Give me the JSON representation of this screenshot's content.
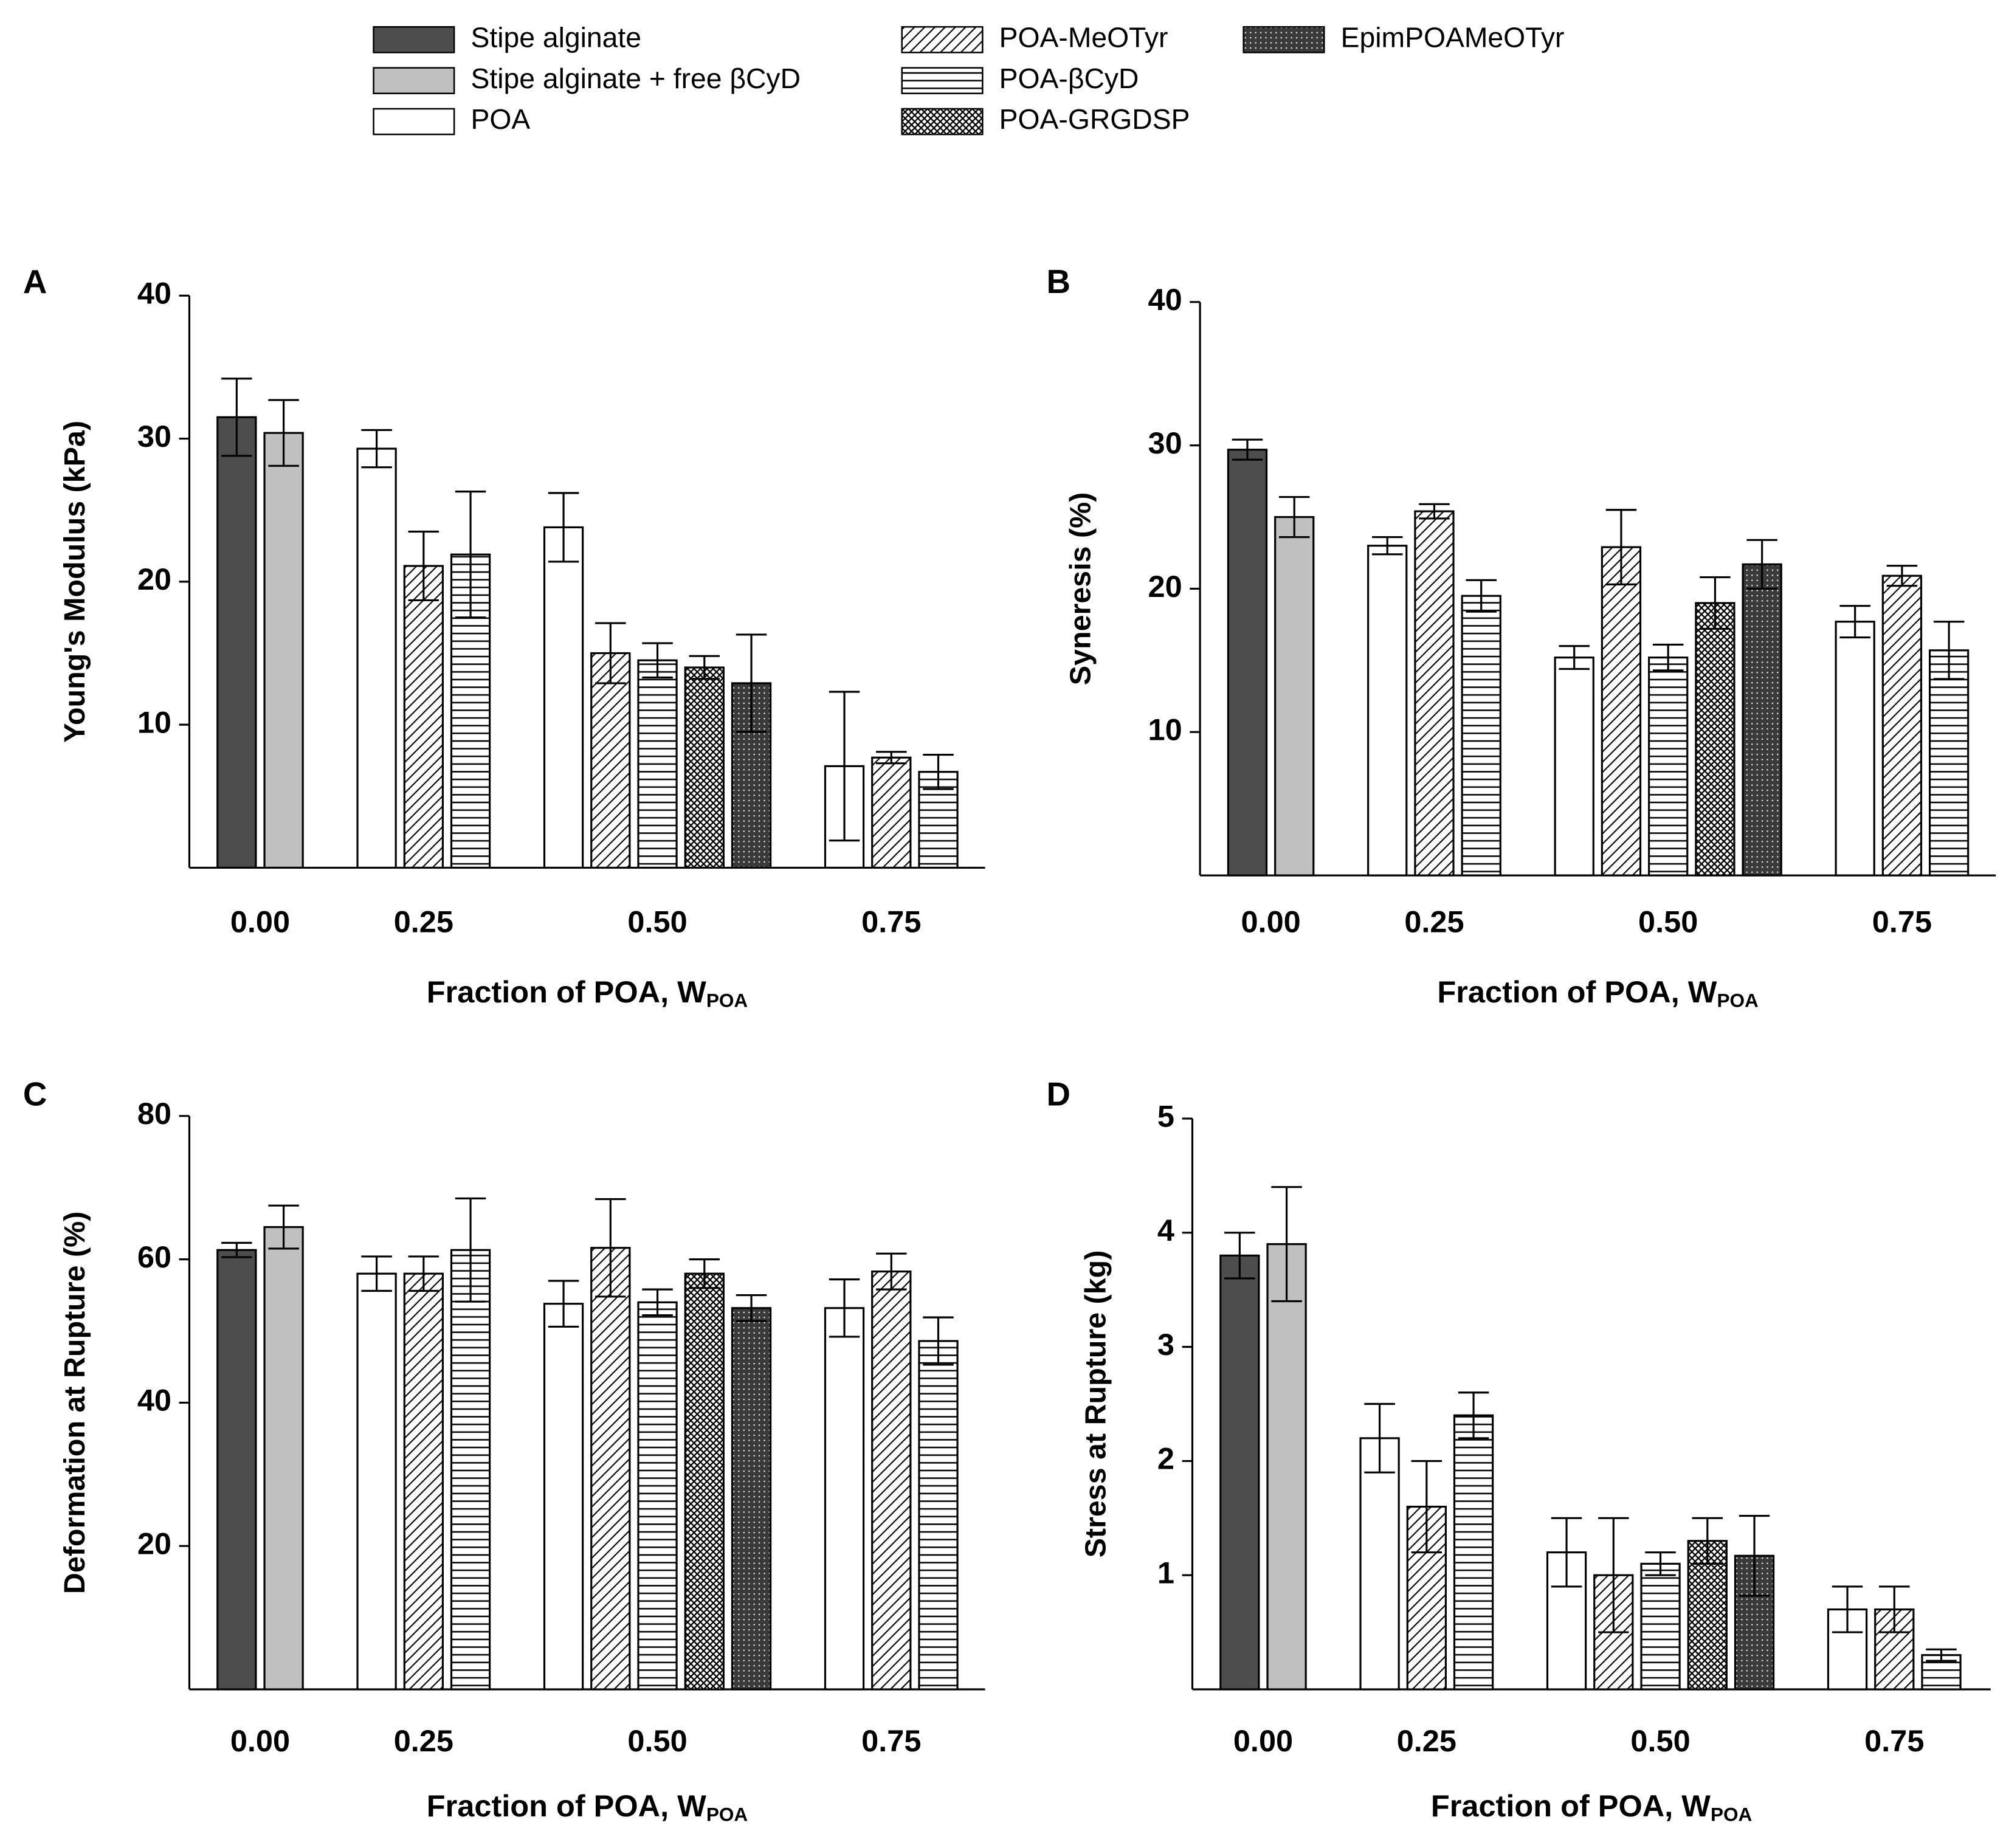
{
  "legend": {
    "series": [
      {
        "name": "Stipe alginate",
        "color": "#4d4d4d",
        "pattern": "solid"
      },
      {
        "name": "Stipe alginate + free βCyD",
        "color": "#c0c0c0",
        "pattern": "solid"
      },
      {
        "name": "POA",
        "color": "#ffffff",
        "pattern": "solid"
      },
      {
        "name": "POA-MeOTyr",
        "color": "#000000",
        "pattern": "diagonal"
      },
      {
        "name": "POA-βCyD",
        "color": "#000000",
        "pattern": "horizontal"
      },
      {
        "name": "POA-GRGDSP",
        "color": "#000000",
        "pattern": "crosshatch"
      },
      {
        "name": "EpimPOAMeOTyr",
        "color": "#3a3a3a",
        "pattern": "dots"
      }
    ]
  },
  "chart_data": [
    {
      "type": "bar",
      "panel": "A",
      "ylabel": "Young's Modulus (kPa)",
      "xlabel": "Fraction of POA, W",
      "xlabel_sub": "POA",
      "categories": [
        "0.00",
        "0.25",
        "0.50",
        "0.75"
      ],
      "ylim": [
        0,
        40
      ],
      "yticks": [
        10,
        20,
        30,
        40
      ],
      "series": [
        {
          "values": [
            31.5,
            null,
            null,
            null
          ],
          "errors": [
            2.7,
            null,
            null,
            null
          ]
        },
        {
          "values": [
            30.4,
            null,
            null,
            null
          ],
          "errors": [
            2.3,
            null,
            null,
            null
          ]
        },
        {
          "values": [
            null,
            29.3,
            23.8,
            7.1
          ],
          "errors": [
            null,
            1.3,
            2.4,
            5.2
          ]
        },
        {
          "values": [
            null,
            21.1,
            15.0,
            7.7
          ],
          "errors": [
            null,
            2.4,
            2.1,
            0.4
          ]
        },
        {
          "values": [
            null,
            21.9,
            14.5,
            6.7
          ],
          "errors": [
            null,
            4.4,
            1.2,
            1.2
          ]
        },
        {
          "values": [
            null,
            null,
            14.0,
            null
          ],
          "errors": [
            null,
            null,
            0.8,
            null
          ]
        },
        {
          "values": [
            null,
            null,
            12.9,
            null
          ],
          "errors": [
            null,
            null,
            3.4,
            null
          ]
        }
      ]
    },
    {
      "type": "bar",
      "panel": "B",
      "ylabel": "Syneresis (%)",
      "xlabel": "Fraction of POA, W",
      "xlabel_sub": "POA",
      "categories": [
        "0.00",
        "0.25",
        "0.50",
        "0.75"
      ],
      "ylim": [
        0,
        40
      ],
      "yticks": [
        10,
        20,
        30,
        40
      ],
      "series": [
        {
          "values": [
            29.7,
            null,
            null,
            null
          ],
          "errors": [
            0.7,
            null,
            null,
            null
          ]
        },
        {
          "values": [
            25.0,
            null,
            null,
            null
          ],
          "errors": [
            1.4,
            null,
            null,
            null
          ]
        },
        {
          "values": [
            null,
            23.0,
            15.2,
            17.7
          ],
          "errors": [
            null,
            0.6,
            0.8,
            1.1
          ]
        },
        {
          "values": [
            null,
            25.4,
            22.9,
            20.9
          ],
          "errors": [
            null,
            0.5,
            2.6,
            0.7
          ]
        },
        {
          "values": [
            null,
            19.5,
            15.2,
            15.7
          ],
          "errors": [
            null,
            1.1,
            0.9,
            2.0
          ]
        },
        {
          "values": [
            null,
            null,
            19.0,
            null
          ],
          "errors": [
            null,
            null,
            1.8,
            null
          ]
        },
        {
          "values": [
            null,
            null,
            21.7,
            null
          ],
          "errors": [
            null,
            null,
            1.7,
            null
          ]
        }
      ]
    },
    {
      "type": "bar",
      "panel": "C",
      "ylabel": "Deformation at Rupture (%)",
      "xlabel": "Fraction of POA, W",
      "xlabel_sub": "POA",
      "categories": [
        "0.00",
        "0.25",
        "0.50",
        "0.75"
      ],
      "ylim": [
        0,
        80
      ],
      "yticks": [
        20,
        40,
        60,
        80
      ],
      "series": [
        {
          "values": [
            61.3,
            null,
            null,
            null
          ],
          "errors": [
            1.0,
            null,
            null,
            null
          ]
        },
        {
          "values": [
            64.5,
            null,
            null,
            null
          ],
          "errors": [
            3.0,
            null,
            null,
            null
          ]
        },
        {
          "values": [
            null,
            58.0,
            53.8,
            53.2
          ],
          "errors": [
            null,
            2.4,
            3.2,
            4.0
          ]
        },
        {
          "values": [
            null,
            58.0,
            61.6,
            58.3
          ],
          "errors": [
            null,
            2.4,
            6.8,
            2.5
          ]
        },
        {
          "values": [
            null,
            61.3,
            54.0,
            48.6
          ],
          "errors": [
            null,
            7.2,
            1.8,
            3.3
          ]
        },
        {
          "values": [
            null,
            null,
            58.0,
            null
          ],
          "errors": [
            null,
            null,
            2.0,
            null
          ]
        },
        {
          "values": [
            null,
            null,
            53.2,
            null
          ],
          "errors": [
            null,
            null,
            1.8,
            null
          ]
        }
      ]
    },
    {
      "type": "bar",
      "panel": "D",
      "ylabel": "Stress at Rupture (kg)",
      "xlabel": "Fraction of POA, W",
      "xlabel_sub": "POA",
      "categories": [
        "0.00",
        "0.25",
        "0.50",
        "0.75"
      ],
      "ylim": [
        0,
        5
      ],
      "yticks": [
        1,
        2,
        3,
        4,
        5
      ],
      "series": [
        {
          "values": [
            3.8,
            null,
            null,
            null
          ],
          "errors": [
            0.2,
            null,
            null,
            null
          ]
        },
        {
          "values": [
            3.9,
            null,
            null,
            null
          ],
          "errors": [
            0.5,
            null,
            null,
            null
          ]
        },
        {
          "values": [
            null,
            2.2,
            1.2,
            0.7
          ],
          "errors": [
            null,
            0.3,
            0.3,
            0.2
          ]
        },
        {
          "values": [
            null,
            1.6,
            1.0,
            0.7
          ],
          "errors": [
            null,
            0.4,
            0.5,
            0.2
          ]
        },
        {
          "values": [
            null,
            2.4,
            1.1,
            0.3
          ],
          "errors": [
            null,
            0.2,
            0.1,
            0.05
          ]
        },
        {
          "values": [
            null,
            null,
            1.3,
            null
          ],
          "errors": [
            null,
            null,
            0.2,
            null
          ]
        },
        {
          "values": [
            null,
            null,
            1.17,
            null
          ],
          "errors": [
            null,
            null,
            0.35,
            null
          ]
        }
      ]
    }
  ]
}
